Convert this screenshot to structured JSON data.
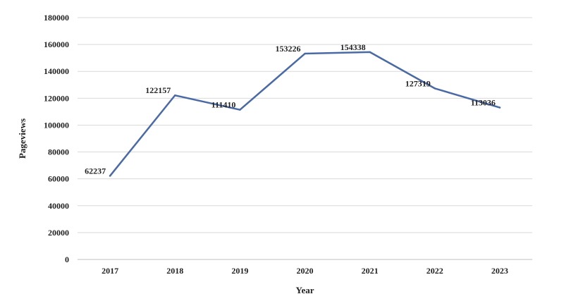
{
  "chart_data": {
    "type": "line",
    "title": "",
    "xlabel": "Year",
    "ylabel": "Pageviews",
    "categories": [
      "2017",
      "2018",
      "2019",
      "2020",
      "2021",
      "2022",
      "2023"
    ],
    "series": [
      {
        "values": [
          62237,
          122157,
          111410,
          153226,
          154338,
          127319,
          113036
        ],
        "color": "#4a6aa5"
      }
    ],
    "data_labels": [
      "62237",
      "122157",
      "111410",
      "153226",
      "154338",
      "127319",
      "113036"
    ],
    "ylim": [
      0,
      180000
    ],
    "yticks": [
      "0",
      "20000",
      "40000",
      "60000",
      "80000",
      "100000",
      "120000",
      "140000",
      "160000",
      "180000"
    ],
    "grid": true,
    "legend": "none"
  }
}
